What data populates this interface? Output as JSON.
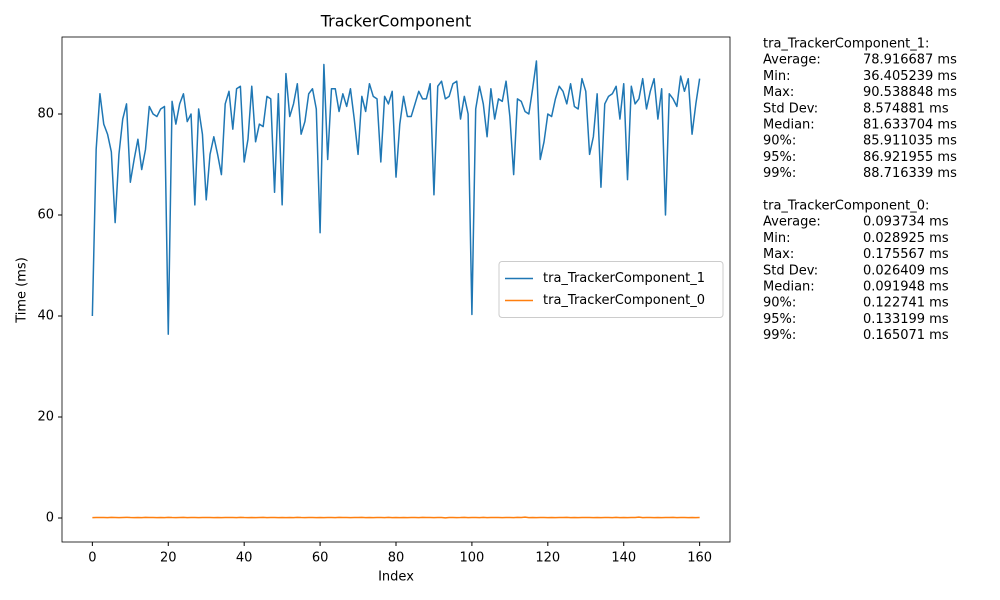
{
  "chart_data": {
    "type": "line",
    "title": "TrackerComponent",
    "x_label": "Index",
    "y_label": "Time (ms)",
    "x": [
      0,
      1,
      2,
      3,
      4,
      5,
      6,
      7,
      8,
      9,
      10,
      11,
      12,
      13,
      14,
      15,
      16,
      17,
      18,
      19,
      20,
      21,
      22,
      23,
      24,
      25,
      26,
      27,
      28,
      29,
      30,
      31,
      32,
      33,
      34,
      35,
      36,
      37,
      38,
      39,
      40,
      41,
      42,
      43,
      44,
      45,
      46,
      47,
      48,
      49,
      50,
      51,
      52,
      53,
      54,
      55,
      56,
      57,
      58,
      59,
      60,
      61,
      62,
      63,
      64,
      65,
      66,
      67,
      68,
      69,
      70,
      71,
      72,
      73,
      74,
      75,
      76,
      77,
      78,
      79,
      80,
      81,
      82,
      83,
      84,
      85,
      86,
      87,
      88,
      89,
      90,
      91,
      92,
      93,
      94,
      95,
      96,
      97,
      98,
      99,
      100,
      101,
      102,
      103,
      104,
      105,
      106,
      107,
      108,
      109,
      110,
      111,
      112,
      113,
      114,
      115,
      116,
      117,
      118,
      119,
      120,
      121,
      122,
      123,
      124,
      125,
      126,
      127,
      128,
      129,
      130,
      131,
      132,
      133,
      134,
      135,
      136,
      137,
      138,
      139,
      140,
      141,
      142,
      143,
      144,
      145,
      146,
      147,
      148,
      149,
      150,
      151,
      152,
      153,
      154,
      155,
      156,
      157,
      158,
      159,
      160
    ],
    "series": [
      {
        "name": "tra_TrackerComponent_1",
        "color": "#1f77b4",
        "values": [
          40,
          73,
          84,
          78,
          76,
          72.5,
          58.5,
          72,
          79,
          82,
          66.5,
          71,
          75,
          69,
          73,
          81.5,
          80,
          79.5,
          81,
          81.5,
          36.4,
          82.5,
          78,
          82,
          84,
          78.5,
          80,
          62,
          81,
          76,
          63,
          72,
          75.5,
          72,
          68,
          82,
          84.5,
          77,
          85,
          85.5,
          70.5,
          75,
          85.5,
          74.5,
          78,
          77.5,
          83.5,
          83,
          64.5,
          84,
          62,
          88,
          79.5,
          82,
          86,
          76,
          78.5,
          84,
          85,
          81,
          56.5,
          89.8,
          71,
          85,
          85,
          80.5,
          84,
          81.5,
          85,
          79,
          72,
          83.5,
          80.5,
          86,
          83.5,
          83,
          70.5,
          83.5,
          82,
          84.5,
          67.5,
          78,
          83.5,
          79.5,
          79.5,
          82,
          84.5,
          83,
          83,
          86,
          64,
          85.5,
          86.5,
          83,
          83.5,
          86,
          86.5,
          79,
          83.5,
          80,
          40.3,
          81,
          85.5,
          82,
          75.5,
          85,
          79,
          83,
          82.5,
          86.5,
          79.5,
          68,
          83,
          82.5,
          80.5,
          80,
          85,
          90.5,
          71,
          74.5,
          80,
          79.5,
          83,
          85.5,
          84.5,
          82,
          86,
          81.5,
          81,
          87,
          84.5,
          72,
          75.5,
          84,
          65.5,
          82,
          83.5,
          84,
          85.5,
          79,
          86,
          67,
          85.5,
          82,
          83,
          87,
          81,
          84.5,
          87,
          79,
          85,
          60,
          84,
          83,
          81.5,
          87.5,
          84.5,
          87,
          76,
          82,
          87
        ]
      },
      {
        "name": "tra_TrackerComponent_0",
        "color": "#ff7f0e",
        "values": [
          0.084,
          0.112,
          0.093,
          0.105,
          0.078,
          0.121,
          0.097,
          0.088,
          0.102,
          0.131,
          0.095,
          0.083,
          0.109,
          0.076,
          0.118,
          0.091,
          0.099,
          0.087,
          0.104,
          0.071,
          0.115,
          0.092,
          0.085,
          0.098,
          0.124,
          0.081,
          0.09,
          0.107,
          0.079,
          0.101,
          0.093,
          0.113,
          0.086,
          0.096,
          0.074,
          0.11,
          0.089,
          0.103,
          0.082,
          0.119,
          0.094,
          0.087,
          0.106,
          0.077,
          0.098,
          0.125,
          0.083,
          0.092,
          0.1,
          0.072,
          0.111,
          0.088,
          0.097,
          0.084,
          0.12,
          0.09,
          0.079,
          0.105,
          0.093,
          0.086,
          0.102,
          0.076,
          0.114,
          0.091,
          0.085,
          0.133,
          0.089,
          0.096,
          0.081,
          0.108,
          0.09,
          0.117,
          0.083,
          0.099,
          0.075,
          0.104,
          0.092,
          0.086,
          0.123,
          0.08,
          0.097,
          0.088,
          0.11,
          0.082,
          0.094,
          0.101,
          0.078,
          0.116,
          0.089,
          0.095,
          0.085,
          0.107,
          0.093,
          0.029,
          0.098,
          0.112,
          0.087,
          0.091,
          0.122,
          0.079,
          0.103,
          0.094,
          0.086,
          0.118,
          0.081,
          0.096,
          0.109,
          0.09,
          0.077,
          0.1,
          0.091,
          0.084,
          0.128,
          0.095,
          0.176,
          0.088,
          0.106,
          0.082,
          0.099,
          0.113,
          0.087,
          0.097,
          0.08,
          0.104,
          0.092,
          0.119,
          0.085,
          0.093,
          0.078,
          0.101,
          0.089,
          0.11,
          0.083,
          0.096,
          0.074,
          0.107,
          0.094,
          0.086,
          0.124,
          0.081,
          0.098,
          0.088,
          0.105,
          0.091,
          0.165,
          0.084,
          0.097,
          0.112,
          0.079,
          0.093,
          0.086,
          0.102,
          0.09,
          0.117,
          0.082,
          0.095,
          0.108,
          0.087,
          0.099,
          0.076,
          0.092
        ]
      }
    ],
    "xlim": [
      -8,
      168
    ],
    "xticks": [
      0,
      20,
      40,
      60,
      80,
      100,
      120,
      140,
      160
    ],
    "ylim": [
      -4.75,
      95.25
    ],
    "yticks": [
      0,
      20,
      40,
      60,
      80
    ],
    "legend": "center right",
    "annotations": [
      {
        "title": "tra_TrackerComponent_1:",
        "rows": [
          [
            "Average:",
            "78.916687 ms"
          ],
          [
            "Min:",
            "36.405239 ms"
          ],
          [
            "Max:",
            "90.538848 ms"
          ],
          [
            "Std Dev:",
            "8.574881 ms"
          ],
          [
            "Median:",
            "81.633704 ms"
          ],
          [
            "90%:",
            "85.911035 ms"
          ],
          [
            "95%:",
            "86.921955 ms"
          ],
          [
            "99%:",
            "88.716339 ms"
          ]
        ]
      },
      {
        "title": "tra_TrackerComponent_0:",
        "rows": [
          [
            "Average:",
            "0.093734 ms"
          ],
          [
            "Min:",
            "0.028925 ms"
          ],
          [
            "Max:",
            "0.175567 ms"
          ],
          [
            "Std Dev:",
            "0.026409 ms"
          ],
          [
            "Median:",
            "0.091948 ms"
          ],
          [
            "90%:",
            "0.122741 ms"
          ],
          [
            "95%:",
            "0.133199 ms"
          ],
          [
            "99%:",
            "0.165071 ms"
          ]
        ]
      }
    ]
  }
}
